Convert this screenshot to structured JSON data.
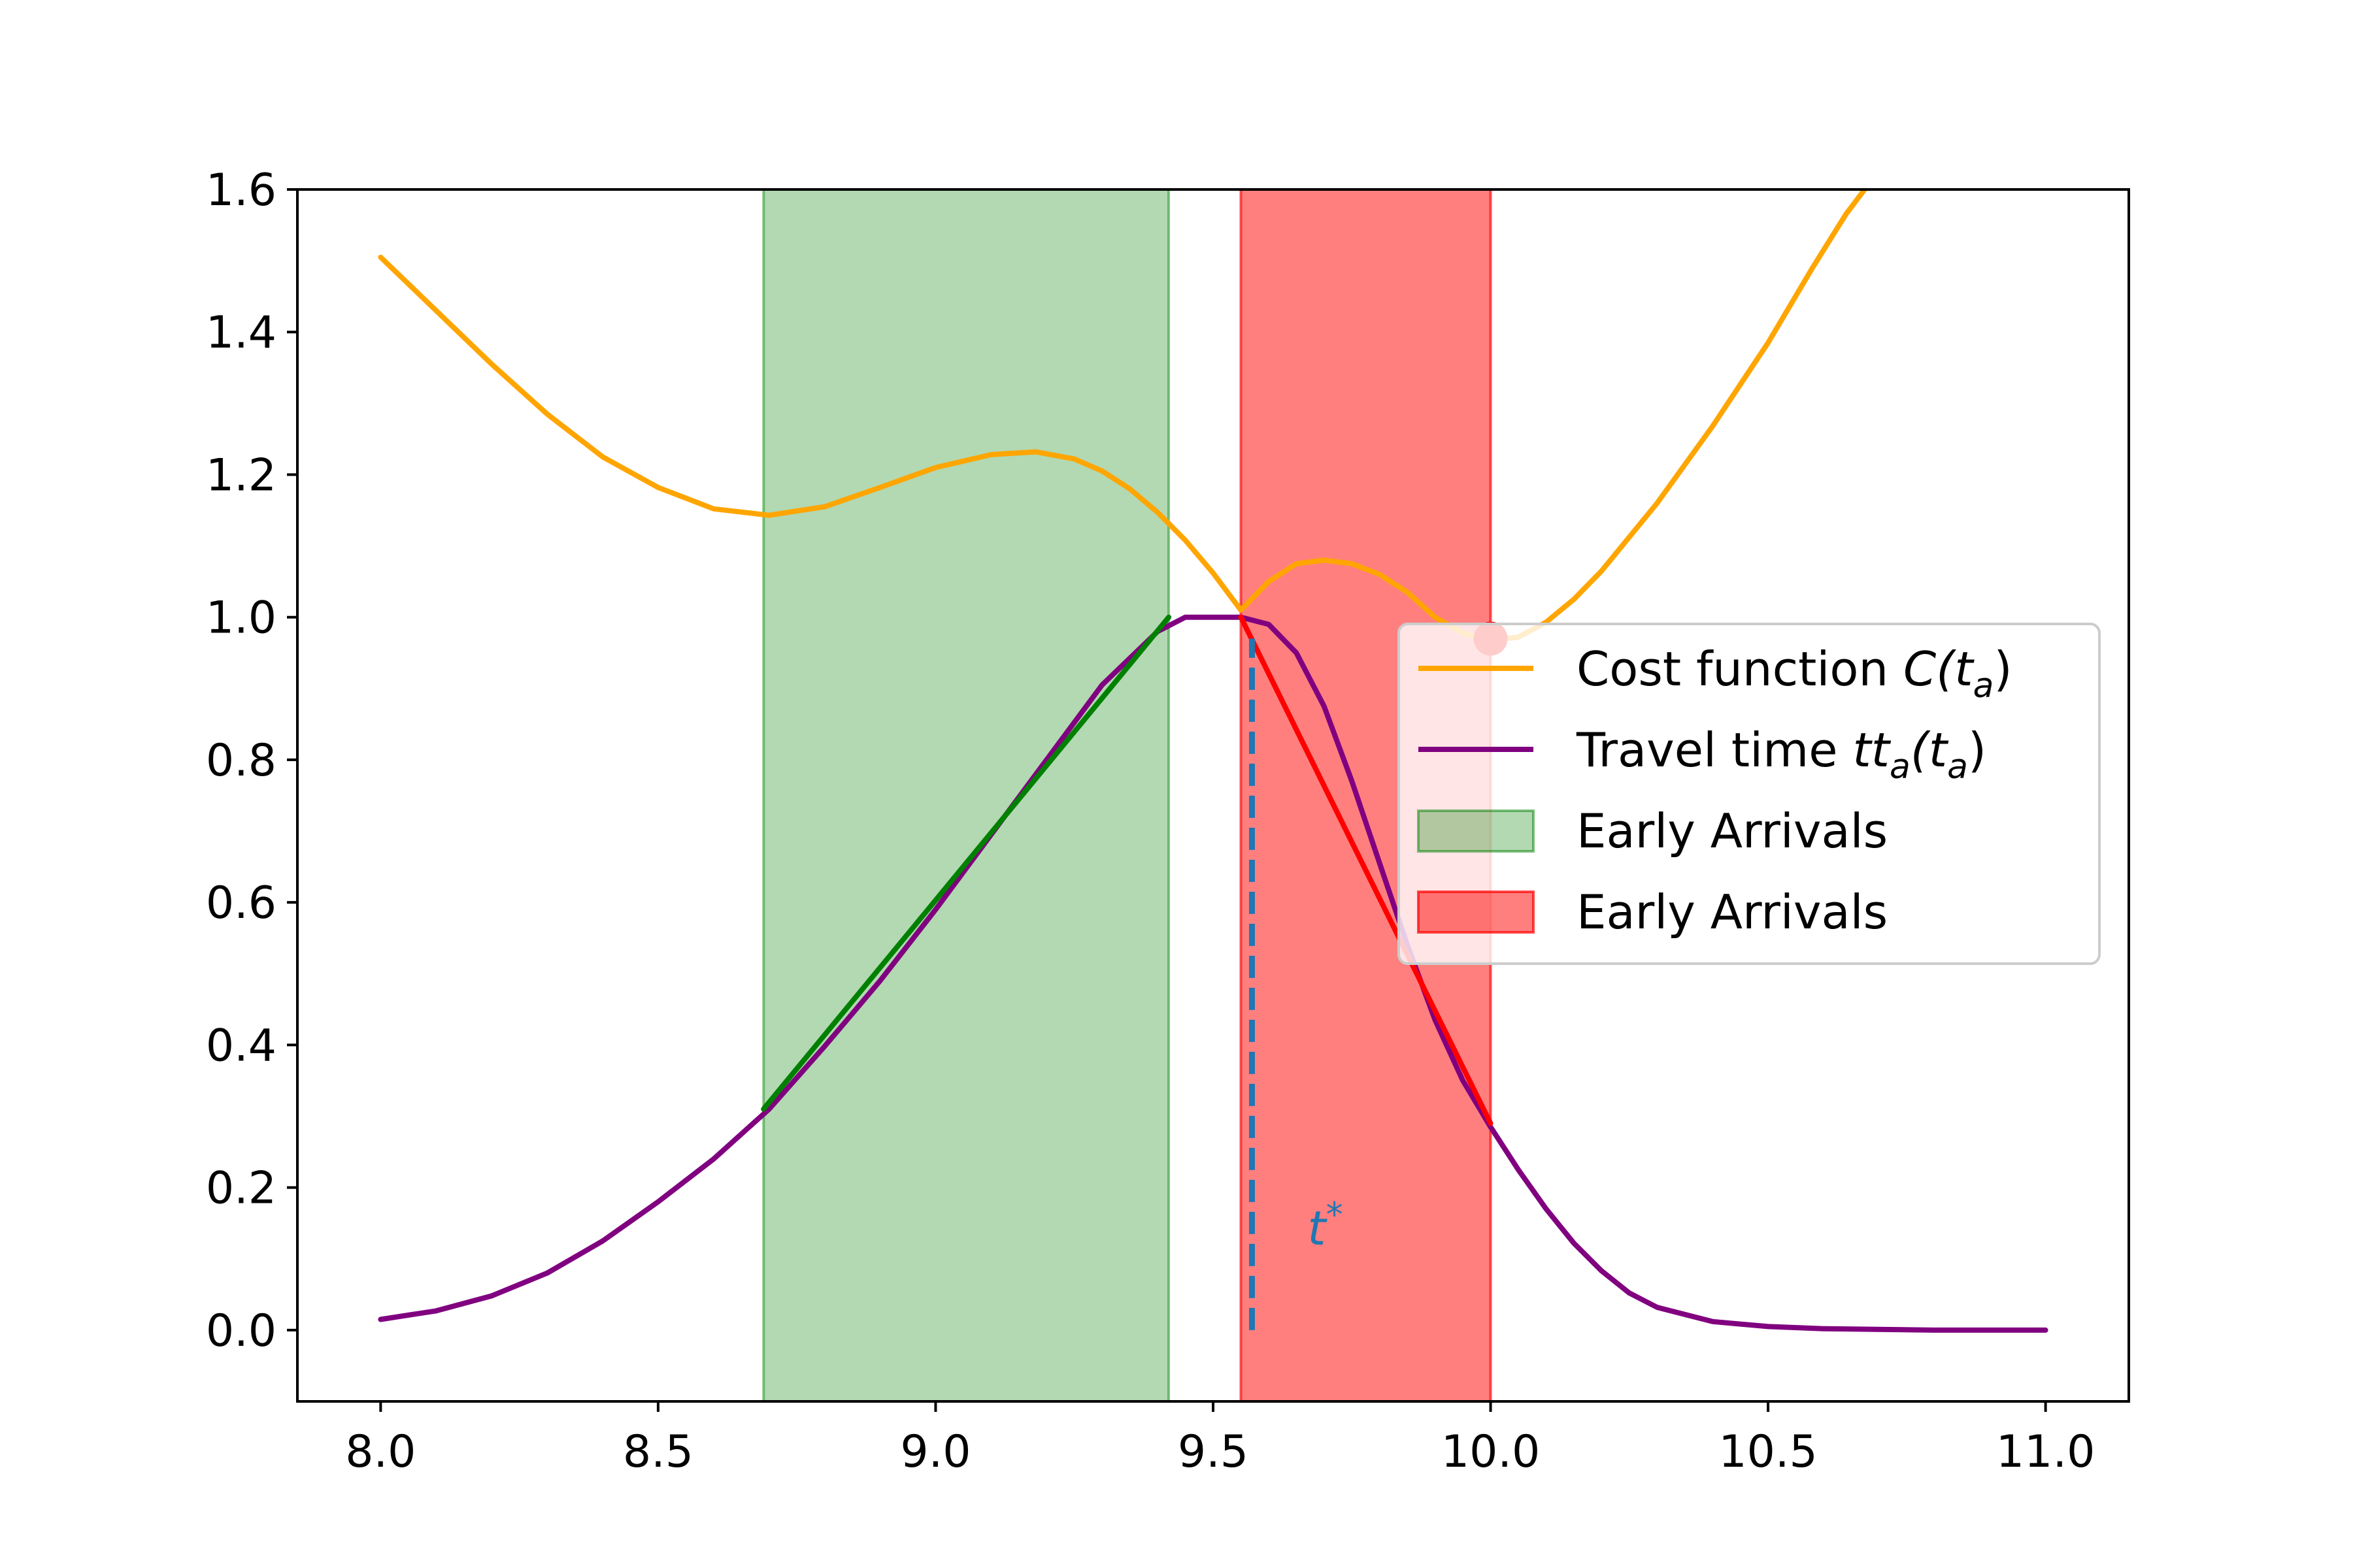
{
  "chart_data": {
    "type": "line",
    "xlim": [
      7.85,
      11.15
    ],
    "ylim": [
      -0.1,
      1.6
    ],
    "grid": false,
    "legend_placement": "center-right",
    "x_ticks": [
      {
        "value": 8.0,
        "label": "8.0"
      },
      {
        "value": 8.5,
        "label": "8.5"
      },
      {
        "value": 9.0,
        "label": "9.0"
      },
      {
        "value": 9.5,
        "label": "9.5"
      },
      {
        "value": 10.0,
        "label": "10.0"
      },
      {
        "value": 10.5,
        "label": "10.5"
      },
      {
        "value": 11.0,
        "label": "11.0"
      }
    ],
    "y_ticks": [
      {
        "value": 0.0,
        "label": "0.0"
      },
      {
        "value": 0.2,
        "label": "0.2"
      },
      {
        "value": 0.4,
        "label": "0.4"
      },
      {
        "value": 0.6,
        "label": "0.6"
      },
      {
        "value": 0.8,
        "label": "0.8"
      },
      {
        "value": 1.0,
        "label": "1.0"
      },
      {
        "value": 1.2,
        "label": "1.2"
      },
      {
        "value": 1.4,
        "label": "1.4"
      },
      {
        "value": 1.6,
        "label": "1.6"
      }
    ],
    "series": [
      {
        "name": "Cost function C(t_a)",
        "color": "#FFA500",
        "points": [
          [
            8.0,
            1.505
          ],
          [
            8.1,
            1.43
          ],
          [
            8.2,
            1.355
          ],
          [
            8.3,
            1.285
          ],
          [
            8.4,
            1.225
          ],
          [
            8.5,
            1.182
          ],
          [
            8.6,
            1.152
          ],
          [
            8.7,
            1.143
          ],
          [
            8.8,
            1.155
          ],
          [
            8.9,
            1.182
          ],
          [
            9.0,
            1.21
          ],
          [
            9.1,
            1.228
          ],
          [
            9.18,
            1.232
          ],
          [
            9.25,
            1.222
          ],
          [
            9.3,
            1.205
          ],
          [
            9.35,
            1.18
          ],
          [
            9.4,
            1.147
          ],
          [
            9.45,
            1.108
          ],
          [
            9.5,
            1.062
          ],
          [
            9.55,
            1.01
          ],
          [
            9.6,
            1.05
          ],
          [
            9.65,
            1.075
          ],
          [
            9.7,
            1.08
          ],
          [
            9.75,
            1.075
          ],
          [
            9.8,
            1.06
          ],
          [
            9.85,
            1.035
          ],
          [
            9.9,
            1.0
          ],
          [
            9.95,
            0.978
          ],
          [
            10.0,
            0.968
          ],
          [
            10.05,
            0.972
          ],
          [
            10.1,
            0.993
          ],
          [
            10.15,
            1.025
          ],
          [
            10.2,
            1.065
          ],
          [
            10.3,
            1.16
          ],
          [
            10.4,
            1.268
          ],
          [
            10.5,
            1.385
          ],
          [
            10.58,
            1.49
          ],
          [
            10.64,
            1.565
          ],
          [
            10.674,
            1.6
          ]
        ]
      },
      {
        "name": "Travel time tt_a(t_a)",
        "color": "#800080",
        "points": [
          [
            8.0,
            0.015
          ],
          [
            8.1,
            0.027
          ],
          [
            8.2,
            0.048
          ],
          [
            8.3,
            0.08
          ],
          [
            8.4,
            0.125
          ],
          [
            8.5,
            0.18
          ],
          [
            8.6,
            0.24
          ],
          [
            8.7,
            0.31
          ],
          [
            8.8,
            0.398
          ],
          [
            8.9,
            0.49
          ],
          [
            9.0,
            0.59
          ],
          [
            9.1,
            0.695
          ],
          [
            9.2,
            0.8
          ],
          [
            9.3,
            0.905
          ],
          [
            9.4,
            0.98
          ],
          [
            9.45,
            1.0
          ],
          [
            9.5,
            1.0
          ],
          [
            9.55,
            1.0
          ],
          [
            9.6,
            0.99
          ],
          [
            9.65,
            0.95
          ],
          [
            9.7,
            0.875
          ],
          [
            9.75,
            0.77
          ],
          [
            9.8,
            0.655
          ],
          [
            9.85,
            0.54
          ],
          [
            9.9,
            0.435
          ],
          [
            9.95,
            0.35
          ],
          [
            10.0,
            0.285
          ],
          [
            10.05,
            0.225
          ],
          [
            10.1,
            0.17
          ],
          [
            10.15,
            0.122
          ],
          [
            10.2,
            0.083
          ],
          [
            10.25,
            0.052
          ],
          [
            10.3,
            0.032
          ],
          [
            10.4,
            0.012
          ],
          [
            10.5,
            0.005
          ],
          [
            10.6,
            0.002
          ],
          [
            10.8,
            0.0
          ],
          [
            11.0,
            0.0
          ]
        ]
      },
      {
        "color": "#008000",
        "points": [
          [
            8.69,
            0.31
          ],
          [
            9.42,
            1.0
          ]
        ]
      },
      {
        "color": "#FF0000",
        "points": [
          [
            9.55,
            1.0
          ],
          [
            10.0,
            0.29
          ]
        ]
      }
    ],
    "bands": [
      {
        "name": "Early Arrivals",
        "x_start": 8.69,
        "x_end": 9.42,
        "color": "#008000",
        "alpha": 0.3
      },
      {
        "name": "Early Arrivals",
        "x_start": 9.55,
        "x_end": 10.0,
        "color": "#FF0000",
        "alpha": 0.5
      }
    ],
    "vline": {
      "x": 9.57,
      "y_start": 0.0,
      "y_end": 0.97,
      "color": "#1f77b4",
      "style": "dashed"
    },
    "point_marker": {
      "x": 10.0,
      "y": 0.97,
      "color": "#FF0000"
    },
    "annotation": {
      "text": "t*",
      "x": 9.67,
      "y": 0.12,
      "color": "#1f77b4"
    },
    "legend": [
      {
        "kind": "line",
        "color": "#FFA500",
        "text": "Cost function ",
        "math_base": "C(t",
        "math_sub": "a",
        "math_tail": ")"
      },
      {
        "kind": "line",
        "color": "#800080",
        "text": "Travel time ",
        "math_base": "tt",
        "math_sub": "a",
        "math_mid": "(t",
        "math_sub2": "a",
        "math_tail": ")"
      },
      {
        "kind": "patch",
        "color": "#008000",
        "alpha": 0.3,
        "text": "Early Arrivals"
      },
      {
        "kind": "patch",
        "color": "#FF0000",
        "alpha": 0.5,
        "text": "Early Arrivals"
      }
    ]
  }
}
